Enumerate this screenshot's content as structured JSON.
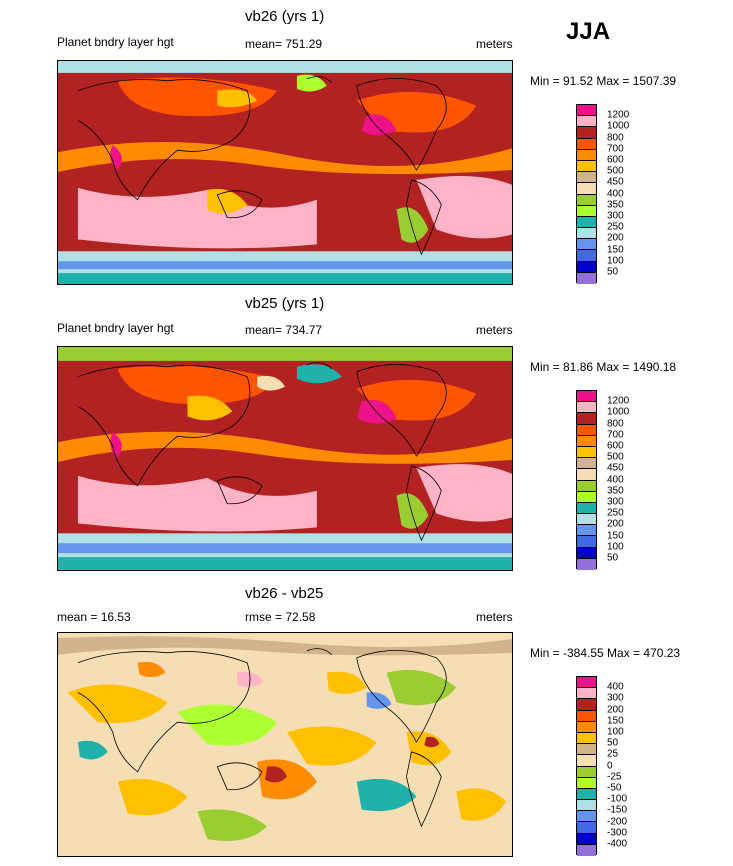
{
  "season": "JJA",
  "panels": [
    {
      "title": "vb26 (yrs 1)",
      "left_label": "Planet bndry layer hgt",
      "center_label": "mean= 751.29",
      "right_label": "meters",
      "minmax": "Min =  91.52 Max = 1507.39",
      "colors": [
        "#ee1188",
        "#ffb3c6",
        "#b22222",
        "#ff5500",
        "#ff8c00",
        "#ffc000",
        "#d2b48c",
        "#f5deb3",
        "#9acd32",
        "#adff2f",
        "#20b2aa",
        "#b0e0e6",
        "#6495ed",
        "#4169e1",
        "#0000cd",
        "#9370db"
      ],
      "ticks": [
        "1200",
        "1000",
        "800",
        "700",
        "600",
        "500",
        "450",
        "400",
        "350",
        "300",
        "250",
        "200",
        "150",
        "100",
        "50"
      ]
    },
    {
      "title": "vb25 (yrs 1)",
      "left_label": "Planet bndry layer hgt",
      "center_label": "mean= 734.77",
      "right_label": "meters",
      "minmax": "Min =  81.86 Max = 1490.18",
      "colors": [
        "#ee1188",
        "#ffb3c6",
        "#b22222",
        "#ff5500",
        "#ff8c00",
        "#ffc000",
        "#d2b48c",
        "#f5deb3",
        "#9acd32",
        "#adff2f",
        "#20b2aa",
        "#b0e0e6",
        "#6495ed",
        "#4169e1",
        "#0000cd",
        "#9370db"
      ],
      "ticks": [
        "1200",
        "1000",
        "800",
        "700",
        "600",
        "500",
        "450",
        "400",
        "350",
        "300",
        "250",
        "200",
        "150",
        "100",
        "50"
      ]
    },
    {
      "title": "vb26 - vb25",
      "left_label": "mean =  16.53",
      "center_label": "rmse =  72.58",
      "right_label": "meters",
      "minmax": "Min = -384.55 Max = 470.23",
      "colors": [
        "#ee1188",
        "#ffb3c6",
        "#b22222",
        "#ff5500",
        "#ff8c00",
        "#ffc000",
        "#d2b48c",
        "#f5deb3",
        "#9acd32",
        "#adff2f",
        "#20b2aa",
        "#b0e0e6",
        "#6495ed",
        "#4169e1",
        "#0000cd",
        "#9370db"
      ],
      "ticks": [
        "400",
        "300",
        "200",
        "150",
        "100",
        "50",
        "25",
        "0",
        "-25",
        "-50",
        "-100",
        "-150",
        "-200",
        "-300",
        "-400"
      ]
    }
  ]
}
